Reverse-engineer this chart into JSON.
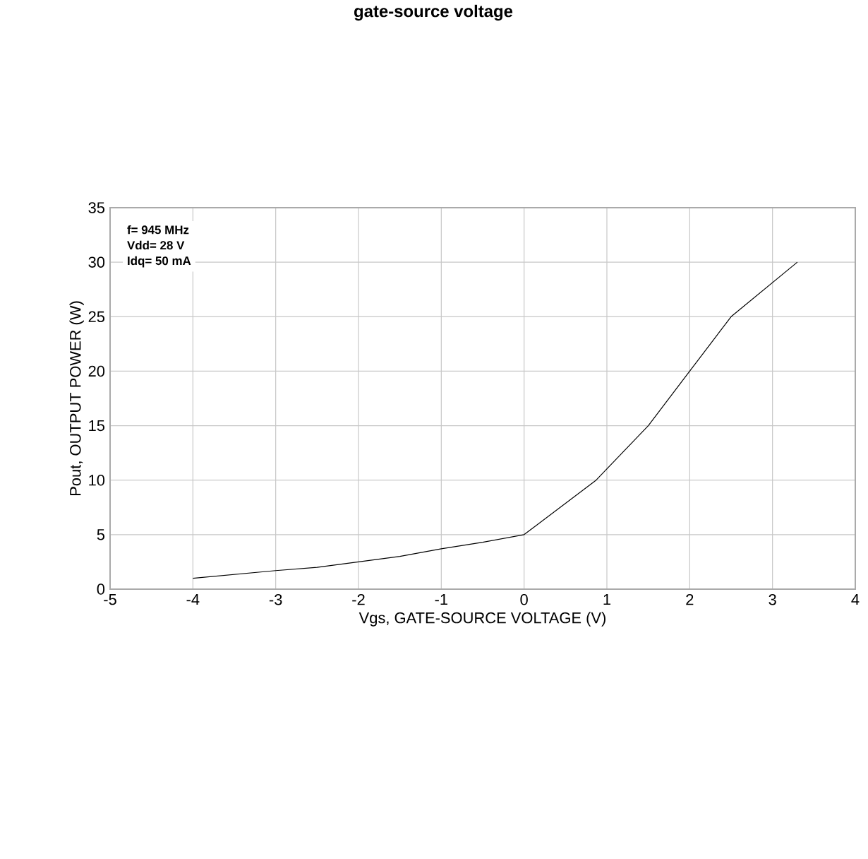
{
  "chart_data": {
    "type": "line",
    "title": "gate-source voltage",
    "xlabel": "Vgs, GATE-SOURCE VOLTAGE (V)",
    "ylabel": "Pout, OUTPUT POWER (W)",
    "annotations": [
      "f= 945 MHz",
      "Vdd= 28 V",
      "Idq= 50 mA"
    ],
    "x": [
      -4,
      -3,
      -2.5,
      -2,
      -1.5,
      -1,
      -0.5,
      0,
      0.87,
      1.5,
      2,
      2.5,
      3.3
    ],
    "series": [
      {
        "color": "#000000",
        "values": [
          1,
          1.7,
          2,
          2.5,
          3,
          3.7,
          4.3,
          5,
          10,
          15,
          20,
          25,
          30
        ]
      }
    ],
    "xlim": [
      -5,
      4
    ],
    "ylim": [
      0,
      35
    ],
    "xticks": [
      -5,
      -4,
      -3,
      -2,
      -1,
      0,
      1,
      2,
      3,
      4
    ],
    "yticks": [
      0,
      5,
      10,
      15,
      20,
      25,
      30,
      35
    ],
    "grid": true,
    "marker": "none",
    "line_style": "solid"
  }
}
